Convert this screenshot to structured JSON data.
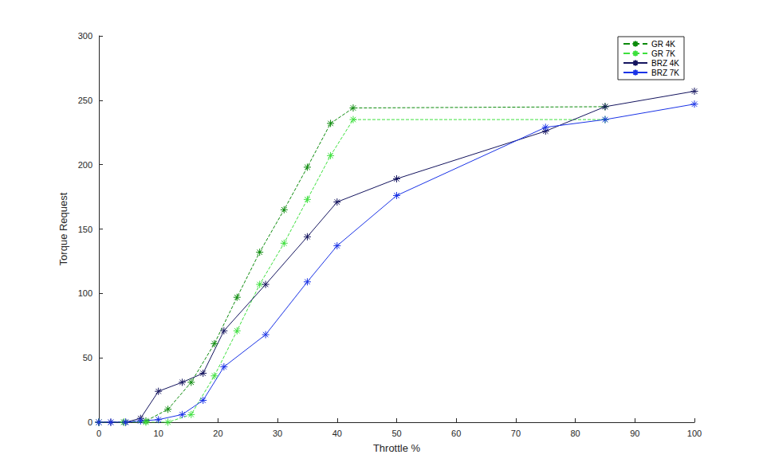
{
  "chart_data": {
    "type": "line",
    "x_label": "Throttle %",
    "y_label": "Torque Request",
    "xlim": [
      0,
      100
    ],
    "xticks": [
      0,
      10,
      20,
      30,
      40,
      50,
      60,
      70,
      80,
      90,
      100
    ],
    "ylim": [
      0,
      300
    ],
    "yticks": [
      0,
      50,
      100,
      150,
      200,
      250,
      300
    ],
    "grid": false,
    "legend": "northeast",
    "marker": "asterisk",
    "series": [
      {
        "name": "GR 4K",
        "color": "#0b8a0b",
        "line_style": "dashed",
        "x": [
          0,
          4.2,
          7.9,
          11.6,
          15.5,
          19.4,
          23.2,
          27.0,
          31.1,
          35.0,
          38.9,
          42.7,
          85
        ],
        "values": [
          0,
          0,
          1,
          10,
          31,
          61,
          97,
          132,
          165,
          198,
          232,
          244,
          245
        ]
      },
      {
        "name": "GR 7K",
        "color": "#3de03d",
        "line_style": "dashed",
        "x": [
          0,
          4.2,
          7.9,
          11.6,
          15.5,
          19.4,
          23.2,
          27.0,
          31.1,
          35.0,
          38.9,
          42.7,
          85
        ],
        "values": [
          0,
          0,
          0,
          0,
          6,
          36,
          71,
          107,
          139,
          173,
          207,
          235,
          235
        ]
      },
      {
        "name": "BRZ 4K",
        "color": "#14145e",
        "line_style": "solid",
        "x": [
          0,
          2,
          4.5,
          7,
          10,
          14,
          17.5,
          21,
          28,
          35,
          40,
          50,
          75,
          85,
          100
        ],
        "values": [
          0,
          0,
          0,
          3,
          24,
          31,
          38,
          71,
          107,
          144,
          171,
          189,
          226,
          245,
          257
        ]
      },
      {
        "name": "BRZ 7K",
        "color": "#1a33e6",
        "line_style": "solid",
        "x": [
          0,
          2,
          4.5,
          7,
          10,
          14,
          17.5,
          21,
          28,
          35,
          40,
          50,
          75,
          85,
          100
        ],
        "values": [
          0,
          0,
          0,
          1,
          2,
          6,
          17,
          43,
          68,
          109,
          137,
          176,
          229,
          235,
          247
        ]
      }
    ]
  }
}
